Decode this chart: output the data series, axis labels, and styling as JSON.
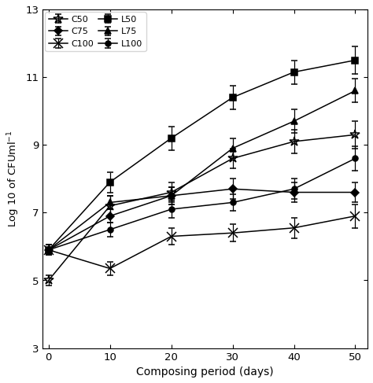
{
  "x": [
    0,
    10,
    20,
    30,
    40,
    50
  ],
  "series": {
    "C50": {
      "y": [
        5.0,
        7.2,
        7.6,
        8.6,
        9.1,
        9.3
      ],
      "yerr": [
        0.15,
        0.3,
        0.3,
        0.3,
        0.35,
        0.4
      ],
      "marker": "*",
      "markersize": 9,
      "label": "C50",
      "color": "#000000",
      "linestyle": "-",
      "markerfacecolor": "none"
    },
    "C75": {
      "y": [
        5.9,
        6.9,
        7.5,
        7.7,
        7.6,
        7.6
      ],
      "yerr": [
        0.15,
        0.2,
        0.25,
        0.3,
        0.3,
        0.3
      ],
      "marker": "D",
      "markersize": 5,
      "label": "C75",
      "color": "#000000",
      "linestyle": "-",
      "markerfacecolor": "black"
    },
    "C100": {
      "y": [
        5.9,
        5.35,
        6.3,
        6.4,
        6.55,
        6.9
      ],
      "yerr": [
        0.15,
        0.2,
        0.25,
        0.25,
        0.3,
        0.35
      ],
      "marker": "x",
      "markersize": 8,
      "label": "C100",
      "color": "#000000",
      "linestyle": "-",
      "markerfacecolor": "none"
    },
    "L50": {
      "y": [
        5.9,
        7.9,
        9.2,
        10.4,
        11.15,
        11.5
      ],
      "yerr": [
        0.15,
        0.3,
        0.35,
        0.35,
        0.35,
        0.4
      ],
      "marker": "s",
      "markersize": 6,
      "label": "L50",
      "color": "#000000",
      "linestyle": "-",
      "markerfacecolor": "black"
    },
    "L75": {
      "y": [
        5.9,
        7.3,
        7.5,
        8.9,
        9.7,
        10.6
      ],
      "yerr": [
        0.15,
        0.2,
        0.25,
        0.3,
        0.35,
        0.35
      ],
      "marker": "^",
      "markersize": 6,
      "label": "L75",
      "color": "#000000",
      "linestyle": "-",
      "markerfacecolor": "black"
    },
    "L100": {
      "y": [
        5.9,
        6.5,
        7.1,
        7.3,
        7.7,
        8.6
      ],
      "yerr": [
        0.15,
        0.2,
        0.25,
        0.25,
        0.3,
        0.35
      ],
      "marker": "o",
      "markersize": 5,
      "label": "L100",
      "color": "#000000",
      "linestyle": "-",
      "markerfacecolor": "black"
    }
  },
  "xlabel": "Composing period (days)",
  "ylabel": "Log 10 of CFUml$^{-1}$",
  "ylim": [
    3,
    13
  ],
  "xlim": [
    -1,
    52
  ],
  "yticks": [
    3,
    5,
    7,
    9,
    11,
    13
  ],
  "xticks": [
    0,
    10,
    20,
    30,
    40,
    50
  ],
  "legend_order": [
    "C50",
    "C75",
    "C100",
    "L50",
    "L75",
    "L100"
  ],
  "figsize": [
    4.74,
    4.87
  ],
  "dpi": 100
}
